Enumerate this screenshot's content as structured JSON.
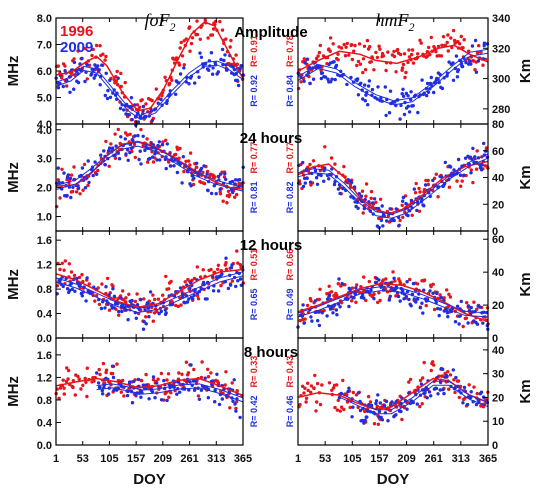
{
  "chart_data": {
    "type": "scatter",
    "x_label": "DOY",
    "x_ticks": [
      1,
      53,
      105,
      157,
      209,
      261,
      313,
      365
    ],
    "x_range": [
      1,
      365
    ],
    "columns": [
      {
        "title": "foF",
        "subscript": "2",
        "y_label": "MHz"
      },
      {
        "title": "hmF",
        "subscript": "2",
        "y_label": "Km"
      }
    ],
    "legend": [
      {
        "label": "1996",
        "color": "#e8141b"
      },
      {
        "label": "2009",
        "color": "#1f2fe0"
      }
    ],
    "rows": [
      {
        "title": "Amplitude",
        "left": {
          "y_range": [
            4.0,
            8.0
          ],
          "y_ticks": [
            "4.0",
            "5.0",
            "6.0",
            "7.0",
            "8.0"
          ],
          "y_tick_values": [
            4,
            5,
            6,
            7,
            8
          ],
          "r_1996": "R= 0.91",
          "r_2009": "R= 0.92",
          "fit_1996": [
            [
              1,
              5.85
            ],
            [
              30,
              5.95
            ],
            [
              60,
              6.35
            ],
            [
              80,
              6.55
            ],
            [
              100,
              6.2
            ],
            [
              130,
              5.2
            ],
            [
              160,
              4.5
            ],
            [
              185,
              4.6
            ],
            [
              210,
              5.3
            ],
            [
              240,
              6.5
            ],
            [
              265,
              7.4
            ],
            [
              290,
              7.85
            ],
            [
              310,
              7.7
            ],
            [
              335,
              6.8
            ],
            [
              365,
              5.7
            ]
          ],
          "fit_2009": [
            [
              1,
              5.5
            ],
            [
              30,
              5.7
            ],
            [
              55,
              6.1
            ],
            [
              80,
              6.0
            ],
            [
              110,
              5.3
            ],
            [
              140,
              4.6
            ],
            [
              165,
              4.25
            ],
            [
              195,
              4.5
            ],
            [
              225,
              5.15
            ],
            [
              260,
              5.85
            ],
            [
              290,
              6.25
            ],
            [
              315,
              6.3
            ],
            [
              340,
              6.1
            ],
            [
              365,
              5.75
            ]
          ]
        },
        "right": {
          "y_range": [
            270,
            340
          ],
          "y_ticks": [
            "280",
            "300",
            "320",
            "340"
          ],
          "y_tick_values": [
            280,
            300,
            320,
            340
          ],
          "r_1996": "R= 0.78",
          "r_2009": "R= 0.84",
          "fit_1996": [
            [
              1,
              305
            ],
            [
              40,
              312
            ],
            [
              80,
              318
            ],
            [
              120,
              316
            ],
            [
              150,
              312
            ],
            [
              190,
              310
            ],
            [
              230,
              314
            ],
            [
              270,
              320
            ],
            [
              300,
              322
            ],
            [
              330,
              316
            ],
            [
              365,
              311
            ]
          ],
          "fit_2009": [
            [
              1,
              300
            ],
            [
              40,
              308
            ],
            [
              75,
              305
            ],
            [
              110,
              296
            ],
            [
              150,
              288
            ],
            [
              185,
              284
            ],
            [
              220,
              286
            ],
            [
              260,
              296
            ],
            [
              300,
              308
            ],
            [
              330,
              316
            ],
            [
              365,
              318
            ]
          ]
        }
      },
      {
        "title": "24 hours",
        "left": {
          "y_range": [
            0.5,
            4.2
          ],
          "y_ticks": [
            "1.0",
            "2.0",
            "3.0",
            "4.0"
          ],
          "y_tick_values": [
            1,
            2,
            3,
            4
          ],
          "r_1996": "R= 0.77",
          "r_2009": "R= 0.81",
          "fit_1996": [
            [
              1,
              2.05
            ],
            [
              40,
              2.1
            ],
            [
              70,
              2.5
            ],
            [
              100,
              3.1
            ],
            [
              130,
              3.5
            ],
            [
              160,
              3.6
            ],
            [
              190,
              3.45
            ],
            [
              230,
              3.05
            ],
            [
              270,
              2.6
            ],
            [
              310,
              2.2
            ],
            [
              340,
              2.0
            ],
            [
              365,
              1.95
            ]
          ],
          "fit_2009": [
            [
              1,
              2.0
            ],
            [
              40,
              2.2
            ],
            [
              70,
              2.6
            ],
            [
              100,
              3.05
            ],
            [
              130,
              3.4
            ],
            [
              160,
              3.5
            ],
            [
              190,
              3.35
            ],
            [
              230,
              2.95
            ],
            [
              270,
              2.5
            ],
            [
              310,
              2.2
            ],
            [
              340,
              2.05
            ],
            [
              365,
              1.95
            ]
          ]
        },
        "right": {
          "y_range": [
            0,
            80
          ],
          "y_ticks": [
            "0",
            "20",
            "40",
            "60",
            "80"
          ],
          "y_tick_values": [
            0,
            20,
            40,
            60,
            80
          ],
          "r_1996": "R= 0.77",
          "r_2009": "R= 0.82",
          "fit_1996": [
            [
              1,
              42
            ],
            [
              30,
              48
            ],
            [
              60,
              50
            ],
            [
              90,
              40
            ],
            [
              120,
              25
            ],
            [
              150,
              16
            ],
            [
              175,
              13
            ],
            [
              200,
              16
            ],
            [
              240,
              27
            ],
            [
              280,
              40
            ],
            [
              320,
              48
            ],
            [
              365,
              52
            ]
          ],
          "fit_2009": [
            [
              1,
              42
            ],
            [
              30,
              45
            ],
            [
              60,
              44
            ],
            [
              90,
              34
            ],
            [
              120,
              22
            ],
            [
              150,
              13
            ],
            [
              180,
              11
            ],
            [
              210,
              15
            ],
            [
              250,
              27
            ],
            [
              290,
              40
            ],
            [
              330,
              50
            ],
            [
              365,
              56
            ]
          ]
        }
      },
      {
        "title": "12 hours",
        "left": {
          "y_range": [
            0.0,
            1.75
          ],
          "y_ticks": [
            "0.0",
            "0.4",
            "0.8",
            "1.2",
            "1.6"
          ],
          "y_tick_values": [
            0,
            0.4,
            0.8,
            1.2,
            1.6
          ],
          "r_1996": "R= 0.51",
          "r_2009": "R= 0.65",
          "fit_1996": [
            [
              1,
              1.05
            ],
            [
              40,
              0.95
            ],
            [
              80,
              0.78
            ],
            [
              120,
              0.6
            ],
            [
              160,
              0.5
            ],
            [
              200,
              0.56
            ],
            [
              240,
              0.76
            ],
            [
              280,
              0.95
            ],
            [
              320,
              1.08
            ],
            [
              365,
              1.12
            ]
          ],
          "fit_2009": [
            [
              1,
              0.95
            ],
            [
              40,
              0.85
            ],
            [
              80,
              0.7
            ],
            [
              120,
              0.55
            ],
            [
              160,
              0.45
            ],
            [
              200,
              0.5
            ],
            [
              240,
              0.65
            ],
            [
              280,
              0.8
            ],
            [
              320,
              0.95
            ],
            [
              365,
              1.05
            ]
          ]
        },
        "right": {
          "y_range": [
            0,
            65
          ],
          "y_ticks": [
            "0",
            "20",
            "40",
            "60"
          ],
          "y_tick_values": [
            0,
            20,
            40,
            60
          ],
          "r_1996": "R= 0.66",
          "r_2009": "R= 0.49",
          "fit_1996": [
            [
              1,
              16
            ],
            [
              40,
              20
            ],
            [
              80,
              25
            ],
            [
              120,
              30
            ],
            [
              160,
              33
            ],
            [
              200,
              32
            ],
            [
              240,
              28
            ],
            [
              280,
              22
            ],
            [
              320,
              15
            ],
            [
              365,
              10
            ]
          ],
          "fit_2009": [
            [
              1,
              14
            ],
            [
              40,
              18
            ],
            [
              80,
              23
            ],
            [
              120,
              28
            ],
            [
              160,
              30
            ],
            [
              200,
              29
            ],
            [
              240,
              25
            ],
            [
              280,
              20
            ],
            [
              320,
              15
            ],
            [
              365,
              14
            ]
          ]
        }
      },
      {
        "title": "8 hours",
        "left": {
          "y_range": [
            0.0,
            1.9
          ],
          "y_ticks": [
            "0.0",
            "0.4",
            "0.8",
            "1.2",
            "1.6"
          ],
          "y_tick_values": [
            0,
            0.4,
            0.8,
            1.2,
            1.6
          ],
          "r_1996": "R= 0.33",
          "r_2009": "R= 0.42",
          "fit_1996": [
            [
              1,
              1.05
            ],
            [
              40,
              1.12
            ],
            [
              80,
              1.18
            ],
            [
              120,
              1.12
            ],
            [
              160,
              1.02
            ],
            [
              200,
              1.05
            ],
            [
              240,
              1.15
            ],
            [
              280,
              1.18
            ],
            [
              320,
              1.05
            ],
            [
              365,
              0.88
            ]
          ],
          "fit_2009": [
            [
              80,
              1.02
            ],
            [
              110,
              1.05
            ],
            [
              140,
              1.0
            ],
            [
              170,
              0.94
            ],
            [
              200,
              0.96
            ],
            [
              240,
              1.03
            ],
            [
              280,
              1.05
            ],
            [
              320,
              0.95
            ],
            [
              365,
              0.8
            ]
          ]
        },
        "right": {
          "y_range": [
            0,
            45
          ],
          "y_ticks": [
            "0",
            "10",
            "20",
            "30",
            "40"
          ],
          "y_tick_values": [
            0,
            10,
            20,
            30,
            40
          ],
          "r_1996": "R= 0.43",
          "r_2009": "R= 0.46",
          "fit_1996": [
            [
              1,
              20
            ],
            [
              40,
              22
            ],
            [
              80,
              21
            ],
            [
              110,
              18
            ],
            [
              150,
              15
            ],
            [
              180,
              16
            ],
            [
              220,
              22
            ],
            [
              260,
              28
            ],
            [
              290,
              27
            ],
            [
              330,
              21
            ],
            [
              365,
              18
            ]
          ],
          "fit_2009": [
            [
              80,
              21
            ],
            [
              110,
              18
            ],
            [
              150,
              14
            ],
            [
              180,
              14
            ],
            [
              220,
              19
            ],
            [
              260,
              26
            ],
            [
              290,
              26
            ],
            [
              330,
              20
            ],
            [
              365,
              17
            ]
          ]
        }
      }
    ]
  }
}
